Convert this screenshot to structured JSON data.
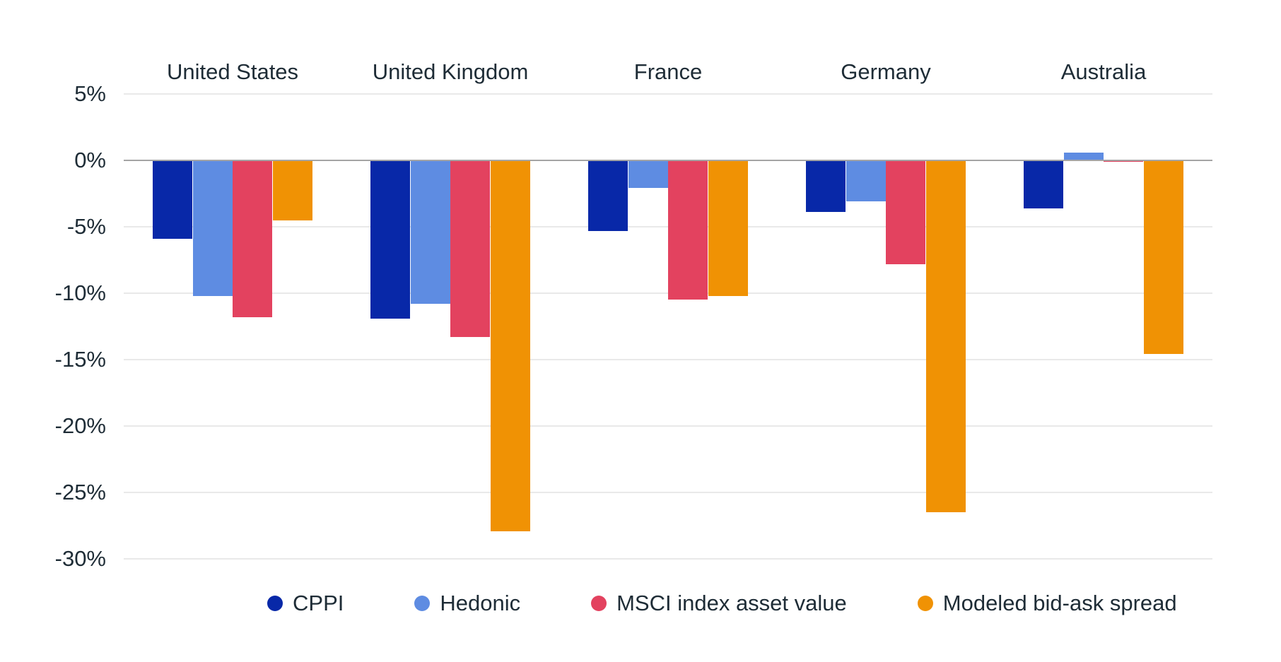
{
  "chart_data": {
    "type": "bar",
    "title": "",
    "categories": [
      "United States",
      "United Kingdom",
      "France",
      "Germany",
      "Australia"
    ],
    "series": [
      {
        "name": "CPPI",
        "color": "#0828a8",
        "values": [
          -5.9,
          -11.9,
          -5.3,
          -3.9,
          -3.6
        ]
      },
      {
        "name": "Hedonic",
        "color": "#5e8ce2",
        "values": [
          -10.2,
          -10.8,
          -2.1,
          -3.1,
          0.6
        ]
      },
      {
        "name": "MSCI index asset value",
        "color": "#e3425f",
        "values": [
          -11.8,
          -13.3,
          -10.5,
          -7.8,
          -0.1
        ]
      },
      {
        "name": "Modeled bid-ask spread",
        "color": "#f09204",
        "values": [
          -4.5,
          -27.9,
          -10.2,
          -26.5,
          -14.6
        ]
      }
    ],
    "yticks": [
      5,
      0,
      -5,
      -10,
      -15,
      -20,
      -25,
      -30
    ],
    "ytick_suffix": "%",
    "ylim": [
      -30,
      5
    ],
    "grid": true,
    "legend_position": "bottom",
    "background_color": "#ffffff",
    "text_color": "#1e2c36",
    "gridline_color": "#e9e9e9",
    "zero_line_color": "#a5a5a5"
  }
}
